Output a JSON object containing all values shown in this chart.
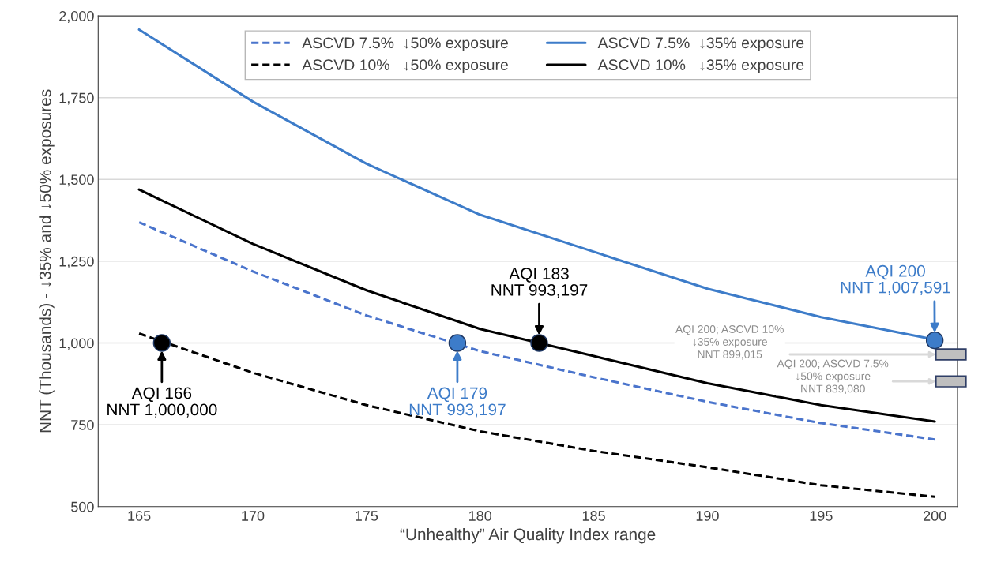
{
  "chart_data": {
    "type": "line",
    "xlabel": "“Unhealthy” Air Quality Index range",
    "ylabel": "NNT (Thousands) - ↓35% and ↓50% exposures",
    "x": [
      165,
      170,
      175,
      180,
      185,
      190,
      195,
      200
    ],
    "series": [
      {
        "name": "ASCVD 7.5%  ↓50% exposure",
        "color": "#4a74cc",
        "line_style": "dashed",
        "values": [
          1369,
          1219,
          1084,
          975,
          895,
          820,
          755,
          705
        ]
      },
      {
        "name": "ASCVD 10%   ↓50% exposure",
        "color": "#000000",
        "line_style": "dashed",
        "values": [
          1029,
          909,
          810,
          730,
          670,
          620,
          565,
          530
        ]
      },
      {
        "name": "ASCVD 7.5%  ↓35% exposure",
        "color": "#3d7cc9",
        "line_style": "solid",
        "values": [
          1958,
          1738,
          1548,
          1392,
          1279,
          1166,
          1079,
          1010
        ]
      },
      {
        "name": "ASCVD 10%   ↓35% exposure",
        "color": "#000000",
        "line_style": "solid",
        "values": [
          1469,
          1303,
          1161,
          1043,
          960,
          877,
          810,
          760
        ]
      },
      {
        "type": "scatter",
        "x": [
          166,
          179,
          182.6,
          200
        ],
        "values": [
          1000,
          1000,
          1000,
          1008
        ],
        "colors": [
          "#000000",
          "#3d7cc9",
          "#000000",
          "#3d7cc9"
        ],
        "marker": "circle"
      }
    ],
    "annotations": [
      {
        "text": "AQI 166\nNNT 1,000,000",
        "x": 166,
        "y": 1000
      },
      {
        "text": "AQI 179\nNNT 993,197",
        "x": 179,
        "y": 1000
      },
      {
        "text": "AQI 183\nNNT 993,197",
        "x": 182.6,
        "y": 1000
      },
      {
        "text": "AQI 200\nNNT 1,007,591",
        "x": 200,
        "y": 1008
      },
      "AQI 200; ASCVD 10%\n↓35% exposure\nNNT 899,015",
      "AQI 200; ASCVD 7.5%\n↓50% exposure\nNNT 839,080"
    ],
    "xlim": [
      163.2,
      201
    ],
    "ylim": [
      500,
      2000
    ],
    "xticks": [
      165,
      170,
      175,
      180,
      185,
      190,
      195,
      200
    ],
    "yticks": [
      {
        "value": 500,
        "label": "500"
      },
      {
        "value": 750,
        "label": "750"
      },
      {
        "value": 1000,
        "label": "1,000"
      },
      {
        "value": 1250,
        "label": "1,250"
      },
      {
        "value": 1500,
        "label": "1,500"
      },
      {
        "value": 1750,
        "label": "1,750"
      },
      {
        "value": 2000,
        "label": "2,000"
      }
    ],
    "grid": "y",
    "legend": "top",
    "marker": "none"
  }
}
